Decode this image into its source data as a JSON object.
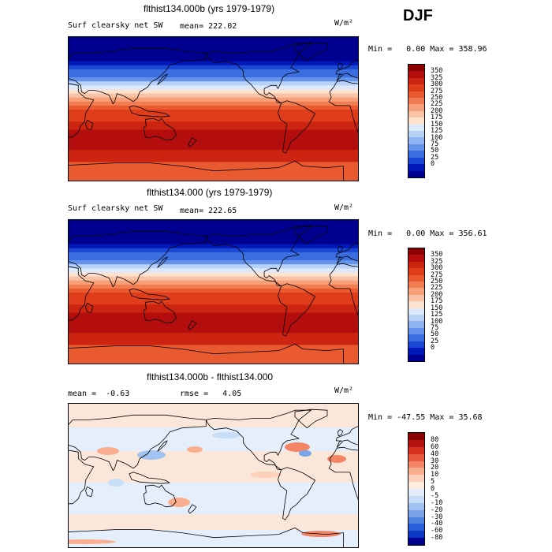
{
  "season": "DJF",
  "panels": [
    {
      "title": "flthist134.000b (yrs 1979-1979)",
      "subtitle_left": "Surf clearsky net SW",
      "subtitle_mid": "mean= 222.02",
      "units": "W/m²",
      "min_label": "Min =",
      "min_value": "0.00",
      "max_label": "Max =",
      "max_value": "358.96",
      "colorbar_labels": [
        "350",
        "325",
        "300",
        "275",
        "250",
        "225",
        "200",
        "175",
        "150",
        "125",
        "100",
        "75",
        "50",
        "25",
        "0"
      ],
      "colorbar_colors": [
        "#8b0000",
        "#b30d0d",
        "#cc2411",
        "#de3c1b",
        "#ea5a30",
        "#f27c51",
        "#f7a07a",
        "#fbc3a6",
        "#fde2d2",
        "#dce9fb",
        "#b8d1f7",
        "#8fb4f1",
        "#6593ea",
        "#3a6de0",
        "#1a47d4",
        "#0018b8",
        "#000090"
      ],
      "map_kind": "sw_b"
    },
    {
      "title": "flthist134.000 (yrs 1979-1979)",
      "subtitle_left": "Surf clearsky net SW",
      "subtitle_mid": "mean= 222.65",
      "units": "W/m²",
      "min_label": "Min =",
      "min_value": "0.00",
      "max_label": "Max =",
      "max_value": "356.61",
      "colorbar_labels": [
        "350",
        "325",
        "300",
        "275",
        "250",
        "225",
        "200",
        "175",
        "150",
        "125",
        "100",
        "75",
        "50",
        "25",
        "0"
      ],
      "colorbar_colors": [
        "#8b0000",
        "#b30d0d",
        "#cc2411",
        "#de3c1b",
        "#ea5a30",
        "#f27c51",
        "#f7a07a",
        "#fbc3a6",
        "#fde2d2",
        "#dce9fb",
        "#b8d1f7",
        "#8fb4f1",
        "#6593ea",
        "#3a6de0",
        "#1a47d4",
        "#0018b8",
        "#000090"
      ],
      "map_kind": "sw"
    },
    {
      "title": "flthist134.000b - flthist134.000",
      "subtitle_left": "mean =  -0.63",
      "subtitle_mid": "rmse =   4.05",
      "units": "W/m²",
      "min_label": "Min =",
      "min_value": "-47.55",
      "max_label": "Max =",
      "max_value": "35.68",
      "colorbar_labels": [
        "80",
        "60",
        "40",
        "30",
        "20",
        "10",
        "5",
        "0",
        "-5",
        "-10",
        "-20",
        "-30",
        "-40",
        "-60",
        "-80"
      ],
      "colorbar_colors": [
        "#8b0000",
        "#b51410",
        "#d43020",
        "#e85a3e",
        "#f38565",
        "#f9ae90",
        "#fcd0b9",
        "#feece0",
        "#e4eefb",
        "#c7dcf7",
        "#a2c2f1",
        "#7aa4ea",
        "#5082e2",
        "#2a5ed8",
        "#0c36c4",
        "#000090"
      ],
      "map_kind": "diff"
    }
  ]
}
